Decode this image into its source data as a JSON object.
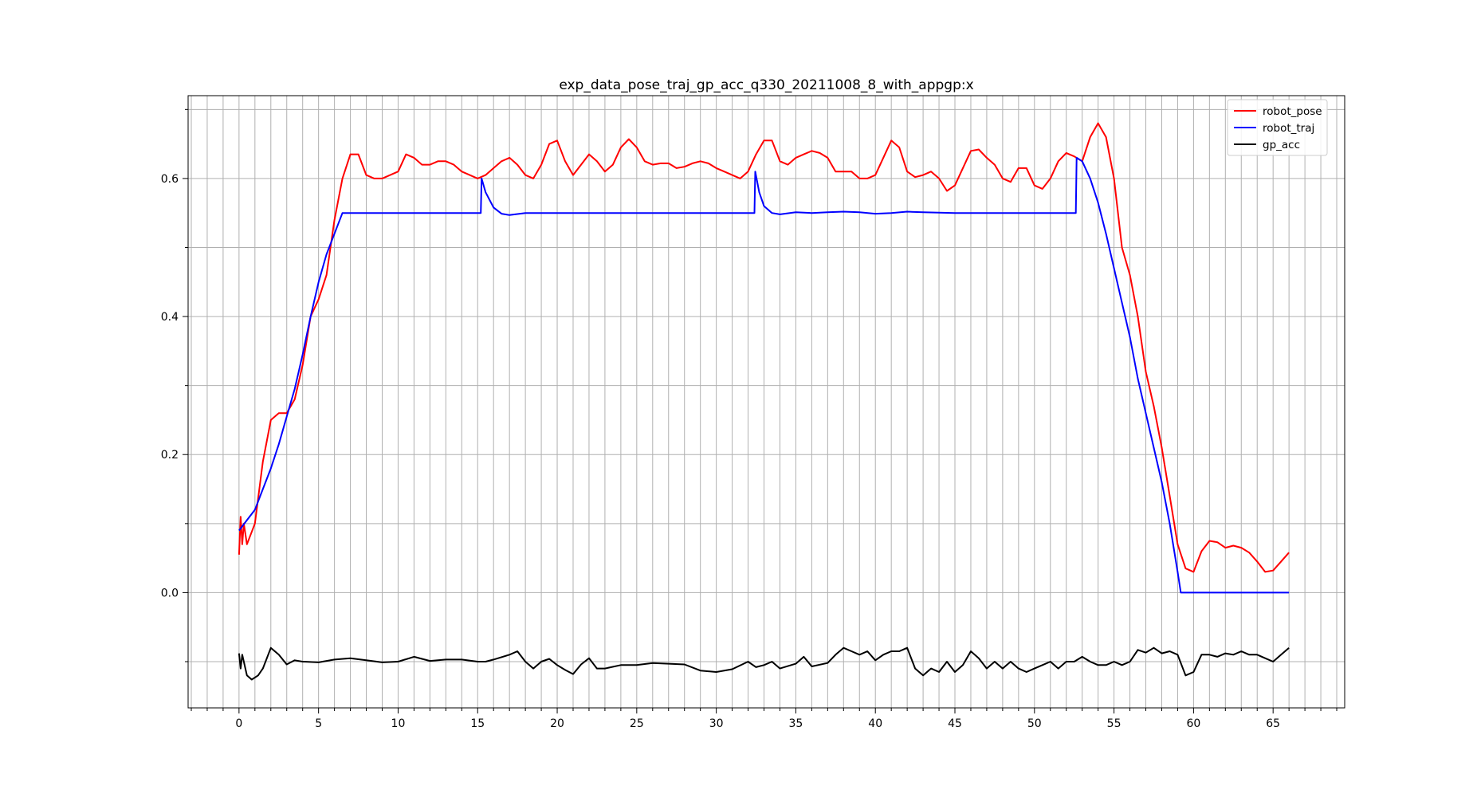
{
  "chart_data": {
    "type": "line",
    "title": "exp_data_pose_traj_gp_acc_q330_20211008_8_with_appgp:x",
    "xlabel": "",
    "ylabel": "",
    "xlim": [
      -3.2,
      69.5
    ],
    "ylim": [
      -0.167,
      0.72
    ],
    "grid": true,
    "legend_position": "top-right",
    "x_ticks": [
      0,
      5,
      10,
      15,
      20,
      25,
      30,
      35,
      40,
      45,
      50,
      55,
      60,
      65
    ],
    "x_tick_labels": [
      "0",
      "5",
      "10",
      "15",
      "20",
      "25",
      "30",
      "35",
      "40",
      "45",
      "50",
      "55",
      "60",
      "65"
    ],
    "y_ticks": [
      0.0,
      0.2,
      0.4,
      0.6
    ],
    "y_tick_labels": [
      "0.0",
      "0.2",
      "0.4",
      "0.6"
    ],
    "series": [
      {
        "name": "robot_pose",
        "color": "#ff0000",
        "points": [
          [
            0,
            0.055
          ],
          [
            0.1,
            0.11
          ],
          [
            0.2,
            0.07
          ],
          [
            0.3,
            0.1
          ],
          [
            0.5,
            0.07
          ],
          [
            1,
            0.1
          ],
          [
            1.5,
            0.19
          ],
          [
            2,
            0.25
          ],
          [
            2.5,
            0.26
          ],
          [
            3,
            0.26
          ],
          [
            3.5,
            0.28
          ],
          [
            4,
            0.33
          ],
          [
            4.5,
            0.4
          ],
          [
            5,
            0.425
          ],
          [
            5.5,
            0.46
          ],
          [
            6,
            0.54
          ],
          [
            6.5,
            0.6
          ],
          [
            7,
            0.635
          ],
          [
            7.5,
            0.635
          ],
          [
            8,
            0.605
          ],
          [
            8.5,
            0.6
          ],
          [
            9,
            0.6
          ],
          [
            9.5,
            0.605
          ],
          [
            10,
            0.61
          ],
          [
            10.5,
            0.635
          ],
          [
            11,
            0.63
          ],
          [
            11.5,
            0.62
          ],
          [
            12,
            0.62
          ],
          [
            12.5,
            0.625
          ],
          [
            13,
            0.625
          ],
          [
            13.5,
            0.62
          ],
          [
            14,
            0.61
          ],
          [
            14.5,
            0.605
          ],
          [
            15,
            0.6
          ],
          [
            15.5,
            0.605
          ],
          [
            16,
            0.615
          ],
          [
            16.5,
            0.625
          ],
          [
            17,
            0.63
          ],
          [
            17.5,
            0.62
          ],
          [
            18,
            0.605
          ],
          [
            18.5,
            0.6
          ],
          [
            19,
            0.62
          ],
          [
            19.5,
            0.65
          ],
          [
            20,
            0.655
          ],
          [
            20.5,
            0.625
          ],
          [
            21,
            0.605
          ],
          [
            21.5,
            0.62
          ],
          [
            22,
            0.635
          ],
          [
            22.5,
            0.625
          ],
          [
            23,
            0.61
          ],
          [
            23.5,
            0.62
          ],
          [
            24,
            0.645
          ],
          [
            24.5,
            0.657
          ],
          [
            25,
            0.645
          ],
          [
            25.5,
            0.625
          ],
          [
            26,
            0.62
          ],
          [
            26.5,
            0.622
          ],
          [
            27,
            0.622
          ],
          [
            27.5,
            0.615
          ],
          [
            28,
            0.617
          ],
          [
            28.5,
            0.622
          ],
          [
            29,
            0.625
          ],
          [
            29.5,
            0.622
          ],
          [
            30,
            0.615
          ],
          [
            30.5,
            0.61
          ],
          [
            31,
            0.605
          ],
          [
            31.5,
            0.6
          ],
          [
            32,
            0.61
          ],
          [
            32.5,
            0.635
          ],
          [
            33,
            0.655
          ],
          [
            33.5,
            0.655
          ],
          [
            34,
            0.625
          ],
          [
            34.5,
            0.62
          ],
          [
            35,
            0.63
          ],
          [
            35.5,
            0.635
          ],
          [
            36,
            0.64
          ],
          [
            36.5,
            0.637
          ],
          [
            37,
            0.63
          ],
          [
            37.5,
            0.61
          ],
          [
            38,
            0.61
          ],
          [
            38.5,
            0.61
          ],
          [
            39,
            0.6
          ],
          [
            39.5,
            0.6
          ],
          [
            40,
            0.605
          ],
          [
            40.5,
            0.63
          ],
          [
            41,
            0.655
          ],
          [
            41.5,
            0.645
          ],
          [
            42,
            0.61
          ],
          [
            42.5,
            0.602
          ],
          [
            43,
            0.605
          ],
          [
            43.5,
            0.61
          ],
          [
            44,
            0.6
          ],
          [
            44.5,
            0.582
          ],
          [
            45,
            0.59
          ],
          [
            45.5,
            0.615
          ],
          [
            46,
            0.64
          ],
          [
            46.5,
            0.642
          ],
          [
            47,
            0.63
          ],
          [
            47.5,
            0.62
          ],
          [
            48,
            0.6
          ],
          [
            48.5,
            0.595
          ],
          [
            49,
            0.615
          ],
          [
            49.5,
            0.615
          ],
          [
            50,
            0.59
          ],
          [
            50.5,
            0.585
          ],
          [
            51,
            0.6
          ],
          [
            51.5,
            0.625
          ],
          [
            52,
            0.637
          ],
          [
            52.5,
            0.632
          ],
          [
            53,
            0.625
          ],
          [
            53.5,
            0.66
          ],
          [
            54,
            0.68
          ],
          [
            54.5,
            0.66
          ],
          [
            55,
            0.6
          ],
          [
            55.5,
            0.5
          ],
          [
            56,
            0.46
          ],
          [
            56.5,
            0.4
          ],
          [
            57,
            0.32
          ],
          [
            57.5,
            0.27
          ],
          [
            58,
            0.21
          ],
          [
            58.5,
            0.14
          ],
          [
            59,
            0.07
          ],
          [
            59.5,
            0.035
          ],
          [
            60,
            0.03
          ],
          [
            60.5,
            0.06
          ],
          [
            61,
            0.075
          ],
          [
            61.5,
            0.073
          ],
          [
            62,
            0.065
          ],
          [
            62.5,
            0.068
          ],
          [
            63,
            0.065
          ],
          [
            63.5,
            0.058
          ],
          [
            64,
            0.045
          ],
          [
            64.5,
            0.03
          ],
          [
            65,
            0.032
          ],
          [
            65.5,
            0.045
          ],
          [
            66,
            0.058
          ]
        ]
      },
      {
        "name": "robot_traj",
        "color": "#0000ff",
        "points": [
          [
            0,
            0.09
          ],
          [
            0.5,
            0.105
          ],
          [
            1,
            0.12
          ],
          [
            1.5,
            0.15
          ],
          [
            2,
            0.18
          ],
          [
            2.5,
            0.215
          ],
          [
            3,
            0.255
          ],
          [
            3.5,
            0.295
          ],
          [
            4,
            0.345
          ],
          [
            4.5,
            0.4
          ],
          [
            5,
            0.45
          ],
          [
            5.5,
            0.49
          ],
          [
            6,
            0.52
          ],
          [
            6.5,
            0.55
          ],
          [
            7,
            0.55
          ],
          [
            10,
            0.55
          ],
          [
            15.2,
            0.55
          ],
          [
            15.25,
            0.6
          ],
          [
            15.5,
            0.58
          ],
          [
            16,
            0.558
          ],
          [
            16.5,
            0.549
          ],
          [
            17,
            0.547
          ],
          [
            18,
            0.55
          ],
          [
            20,
            0.55
          ],
          [
            25,
            0.55
          ],
          [
            32.4,
            0.55
          ],
          [
            32.45,
            0.61
          ],
          [
            32.7,
            0.58
          ],
          [
            33,
            0.56
          ],
          [
            33.5,
            0.55
          ],
          [
            34,
            0.548
          ],
          [
            35,
            0.551
          ],
          [
            36,
            0.55
          ],
          [
            37,
            0.551
          ],
          [
            38,
            0.552
          ],
          [
            39,
            0.551
          ],
          [
            40,
            0.549
          ],
          [
            41,
            0.55
          ],
          [
            42,
            0.552
          ],
          [
            43,
            0.551
          ],
          [
            45,
            0.55
          ],
          [
            50,
            0.55
          ],
          [
            52.6,
            0.55
          ],
          [
            52.65,
            0.63
          ],
          [
            53,
            0.625
          ],
          [
            53.5,
            0.6
          ],
          [
            54,
            0.565
          ],
          [
            54.5,
            0.52
          ],
          [
            55,
            0.47
          ],
          [
            55.5,
            0.42
          ],
          [
            56,
            0.37
          ],
          [
            56.5,
            0.31
          ],
          [
            57,
            0.26
          ],
          [
            57.5,
            0.21
          ],
          [
            58,
            0.16
          ],
          [
            58.5,
            0.1
          ],
          [
            59,
            0.03
          ],
          [
            59.2,
            0.0
          ],
          [
            60,
            0.0
          ],
          [
            65,
            0.0
          ],
          [
            66,
            0.0
          ]
        ]
      },
      {
        "name": "gp_acc",
        "color": "#000000",
        "points": [
          [
            0,
            -0.088
          ],
          [
            0.1,
            -0.11
          ],
          [
            0.2,
            -0.09
          ],
          [
            0.3,
            -0.1
          ],
          [
            0.5,
            -0.12
          ],
          [
            0.8,
            -0.126
          ],
          [
            1.2,
            -0.12
          ],
          [
            1.5,
            -0.11
          ],
          [
            2,
            -0.08
          ],
          [
            2.5,
            -0.09
          ],
          [
            3,
            -0.104
          ],
          [
            3.5,
            -0.098
          ],
          [
            4,
            -0.1
          ],
          [
            5,
            -0.101
          ],
          [
            6,
            -0.097
          ],
          [
            7,
            -0.095
          ],
          [
            8,
            -0.098
          ],
          [
            9,
            -0.101
          ],
          [
            10,
            -0.1
          ],
          [
            11,
            -0.093
          ],
          [
            12,
            -0.099
          ],
          [
            13,
            -0.097
          ],
          [
            14,
            -0.097
          ],
          [
            15,
            -0.1
          ],
          [
            15.5,
            -0.1
          ],
          [
            16,
            -0.097
          ],
          [
            17,
            -0.09
          ],
          [
            17.5,
            -0.085
          ],
          [
            18,
            -0.1
          ],
          [
            18.5,
            -0.11
          ],
          [
            19,
            -0.1
          ],
          [
            19.5,
            -0.096
          ],
          [
            20,
            -0.105
          ],
          [
            20.5,
            -0.112
          ],
          [
            21,
            -0.118
          ],
          [
            21.5,
            -0.104
          ],
          [
            22,
            -0.095
          ],
          [
            22.5,
            -0.11
          ],
          [
            23,
            -0.11
          ],
          [
            24,
            -0.105
          ],
          [
            25,
            -0.105
          ],
          [
            26,
            -0.102
          ],
          [
            27,
            -0.103
          ],
          [
            28,
            -0.104
          ],
          [
            29,
            -0.113
          ],
          [
            30,
            -0.115
          ],
          [
            31,
            -0.111
          ],
          [
            32,
            -0.1
          ],
          [
            32.5,
            -0.108
          ],
          [
            33,
            -0.105
          ],
          [
            33.5,
            -0.1
          ],
          [
            34,
            -0.11
          ],
          [
            35,
            -0.103
          ],
          [
            35.5,
            -0.093
          ],
          [
            36,
            -0.107
          ],
          [
            37,
            -0.102
          ],
          [
            37.5,
            -0.09
          ],
          [
            38,
            -0.08
          ],
          [
            38.5,
            -0.085
          ],
          [
            39,
            -0.09
          ],
          [
            39.5,
            -0.085
          ],
          [
            40,
            -0.098
          ],
          [
            40.5,
            -0.09
          ],
          [
            41,
            -0.085
          ],
          [
            41.5,
            -0.085
          ],
          [
            42,
            -0.08
          ],
          [
            42.5,
            -0.11
          ],
          [
            43,
            -0.12
          ],
          [
            43.5,
            -0.11
          ],
          [
            44,
            -0.115
          ],
          [
            44.5,
            -0.1
          ],
          [
            45,
            -0.115
          ],
          [
            45.5,
            -0.105
          ],
          [
            46,
            -0.085
          ],
          [
            46.5,
            -0.095
          ],
          [
            47,
            -0.11
          ],
          [
            47.5,
            -0.1
          ],
          [
            48,
            -0.11
          ],
          [
            48.5,
            -0.1
          ],
          [
            49,
            -0.11
          ],
          [
            49.5,
            -0.115
          ],
          [
            50,
            -0.11
          ],
          [
            50.5,
            -0.105
          ],
          [
            51,
            -0.1
          ],
          [
            51.5,
            -0.11
          ],
          [
            52,
            -0.1
          ],
          [
            52.5,
            -0.1
          ],
          [
            53,
            -0.093
          ],
          [
            53.5,
            -0.1
          ],
          [
            54,
            -0.105
          ],
          [
            54.5,
            -0.105
          ],
          [
            55,
            -0.1
          ],
          [
            55.5,
            -0.105
          ],
          [
            56,
            -0.1
          ],
          [
            56.5,
            -0.083
          ],
          [
            57,
            -0.087
          ],
          [
            57.5,
            -0.08
          ],
          [
            58,
            -0.088
          ],
          [
            58.5,
            -0.085
          ],
          [
            59,
            -0.09
          ],
          [
            59.5,
            -0.12
          ],
          [
            60,
            -0.115
          ],
          [
            60.5,
            -0.09
          ],
          [
            61,
            -0.09
          ],
          [
            61.5,
            -0.093
          ],
          [
            62,
            -0.088
          ],
          [
            62.5,
            -0.09
          ],
          [
            63,
            -0.085
          ],
          [
            63.5,
            -0.09
          ],
          [
            64,
            -0.09
          ],
          [
            64.5,
            -0.095
          ],
          [
            65,
            -0.1
          ],
          [
            65.5,
            -0.09
          ],
          [
            66,
            -0.08
          ]
        ]
      }
    ]
  }
}
